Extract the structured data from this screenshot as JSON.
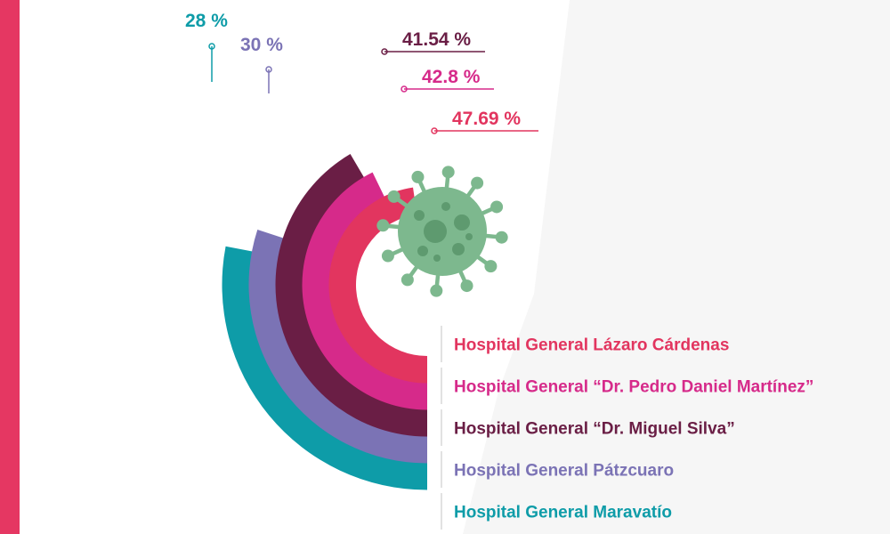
{
  "frame": {
    "color": "#E53762"
  },
  "icon": {
    "name": "virus-icon",
    "color": "#7DB88E"
  },
  "chart_data": {
    "type": "radial-bar",
    "title": "",
    "unit": "%",
    "categories": [
      "Hospital General Lázaro Cárdenas",
      "Hospital General “Dr. Pedro Daniel Martínez”",
      "Hospital General “Dr. Miguel Silva”",
      "Hospital General Pátzcuaro",
      "Hospital General Maravatío"
    ],
    "values": [
      47.69,
      42.8,
      41.54,
      30,
      28
    ],
    "value_labels": [
      "47.69 %",
      "42.8 %",
      "41.54 %",
      "30 %",
      "28 %"
    ],
    "colors": [
      "#E2355F",
      "#D62A8A",
      "#6A1E45",
      "#7B73B5",
      "#0E9CA8"
    ]
  }
}
